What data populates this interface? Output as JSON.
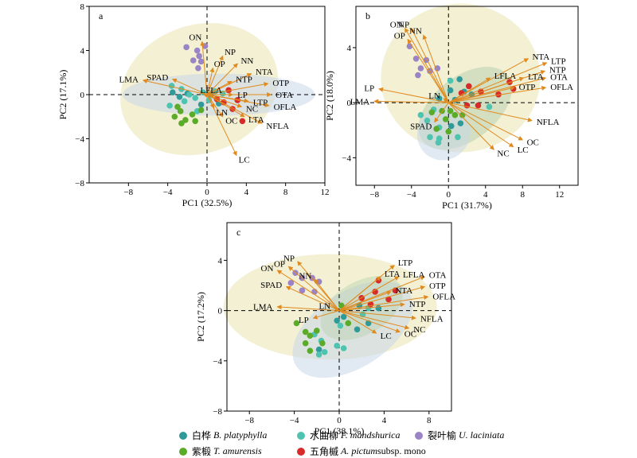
{
  "legend": [
    {
      "cn": "白桦",
      "latin": "B. platyphylla",
      "suffix": "",
      "color": "#2f9a9a"
    },
    {
      "cn": "水曲柳",
      "latin": "F. mandshurica",
      "suffix": "",
      "color": "#4ec3b0"
    },
    {
      "cn": "裂叶榆",
      "latin": "U. laciniata",
      "suffix": "",
      "color": "#9b84c6"
    },
    {
      "cn": "紫椴",
      "latin": "T. amurensis",
      "suffix": "",
      "color": "#5aab2a"
    },
    {
      "cn": "五角槭",
      "latin": "A. pictum",
      "suffix": " subsp. mono",
      "color": "#d92a2a"
    }
  ],
  "chart_data": [
    {
      "type": "scatter",
      "panel_label": "a",
      "xlabel": "PC1 (32.5%)",
      "ylabel": "PC2 (17.1%)",
      "xlim": [
        -12,
        12
      ],
      "ylim": [
        -8,
        8
      ],
      "xticks": [
        -8,
        -4,
        0,
        4,
        8,
        12
      ],
      "yticks": [
        -8,
        -4,
        0,
        4,
        8
      ],
      "vectors": [
        {
          "name": "ON",
          "x": -0.5,
          "y": 4.8
        },
        {
          "name": "NP",
          "x": 1.6,
          "y": 3.5
        },
        {
          "name": "OP",
          "x": 0.6,
          "y": 2.4
        },
        {
          "name": "NN",
          "x": 3.1,
          "y": 2.8
        },
        {
          "name": "NTA",
          "x": 4.5,
          "y": 1.9
        },
        {
          "name": "NTP",
          "x": 2.5,
          "y": 1.2
        },
        {
          "name": "OTP",
          "x": 6.2,
          "y": 1.0
        },
        {
          "name": "OTA",
          "x": 6.5,
          "y": 0.0
        },
        {
          "name": "LTP",
          "x": 4.2,
          "y": -0.6
        },
        {
          "name": "OFLA",
          "x": 6.3,
          "y": -1.0
        },
        {
          "name": "LTA",
          "x": 3.8,
          "y": -2.0
        },
        {
          "name": "NFLA",
          "x": 5.6,
          "y": -2.6
        },
        {
          "name": "NC",
          "x": 3.5,
          "y": -1.1
        },
        {
          "name": "OC",
          "x": 1.6,
          "y": -2.0
        },
        {
          "name": "LP",
          "x": 2.6,
          "y": 0.0
        },
        {
          "name": "LN",
          "x": 0.7,
          "y": -1.2
        },
        {
          "name": "LFLA",
          "x": 0.1,
          "y": 0.1
        },
        {
          "name": "LC",
          "x": 3.0,
          "y": -5.5
        },
        {
          "name": "SPAD",
          "x": -3.5,
          "y": 1.4
        },
        {
          "name": "LMA",
          "x": -6.5,
          "y": 1.3
        }
      ],
      "points": [
        {
          "g": 0,
          "x": -3.5,
          "y": 0.2
        },
        {
          "g": 0,
          "x": -2.8,
          "y": -0.2
        },
        {
          "g": 0,
          "x": -2.0,
          "y": 0.1
        },
        {
          "g": 0,
          "x": 0.4,
          "y": 0.0
        },
        {
          "g": 0,
          "x": -0.6,
          "y": -0.9
        },
        {
          "g": 0,
          "x": 1.2,
          "y": -0.8
        },
        {
          "g": 1,
          "x": -3.6,
          "y": 0.8
        },
        {
          "g": 1,
          "x": -2.6,
          "y": 0.5
        },
        {
          "g": 1,
          "x": -1.8,
          "y": 0.0
        },
        {
          "g": 1,
          "x": -1.2,
          "y": -0.3
        },
        {
          "g": 1,
          "x": -0.4,
          "y": 0.2
        },
        {
          "g": 1,
          "x": 0.8,
          "y": 0.3
        },
        {
          "g": 1,
          "x": -1.0,
          "y": -1.5
        },
        {
          "g": 1,
          "x": 1.6,
          "y": 0.1
        },
        {
          "g": 1,
          "x": -3.8,
          "y": -1.0
        },
        {
          "g": 1,
          "x": -2.3,
          "y": -0.6
        },
        {
          "g": 1,
          "x": 0.2,
          "y": -0.5
        },
        {
          "g": 2,
          "x": -2.1,
          "y": 4.3
        },
        {
          "g": 2,
          "x": -1.0,
          "y": 4.0
        },
        {
          "g": 2,
          "x": -0.8,
          "y": 3.5
        },
        {
          "g": 2,
          "x": -0.6,
          "y": 3.0
        },
        {
          "g": 2,
          "x": -0.2,
          "y": 4.4
        },
        {
          "g": 2,
          "x": -1.4,
          "y": 3.1
        },
        {
          "g": 2,
          "x": -0.9,
          "y": 2.4
        },
        {
          "g": 3,
          "x": -3.3,
          "y": -2.0
        },
        {
          "g": 3,
          "x": -2.7,
          "y": -1.5
        },
        {
          "g": 3,
          "x": -2.2,
          "y": -2.3
        },
        {
          "g": 3,
          "x": -1.5,
          "y": -1.8
        },
        {
          "g": 3,
          "x": -1.2,
          "y": -2.4
        },
        {
          "g": 3,
          "x": -2.6,
          "y": -2.6
        },
        {
          "g": 3,
          "x": -0.6,
          "y": -1.4
        },
        {
          "g": 3,
          "x": -3.0,
          "y": -1.1
        },
        {
          "g": 4,
          "x": 1.0,
          "y": -0.4
        },
        {
          "g": 4,
          "x": 1.7,
          "y": -0.7
        },
        {
          "g": 4,
          "x": 2.6,
          "y": -1.3
        },
        {
          "g": 4,
          "x": 3.1,
          "y": -0.5
        },
        {
          "g": 4,
          "x": 3.6,
          "y": -2.4
        },
        {
          "g": 4,
          "x": 2.2,
          "y": 0.4
        }
      ]
    },
    {
      "type": "scatter",
      "panel_label": "b",
      "xlabel": "PC1 (31.7%)",
      "ylabel": "PC2 (18.0%)",
      "xlim": [
        -10,
        14
      ],
      "ylim": [
        -6,
        7
      ],
      "xticks": [
        -8,
        -4,
        0,
        4,
        8,
        12
      ],
      "yticks": [
        -4,
        0,
        4
      ],
      "vectors": [
        {
          "name": "ON",
          "x": -4.7,
          "y": 5.4
        },
        {
          "name": "NP",
          "x": -4.0,
          "y": 5.4
        },
        {
          "name": "OP",
          "x": -4.4,
          "y": 4.6
        },
        {
          "name": "NN",
          "x": -2.7,
          "y": 4.9
        },
        {
          "name": "NTA",
          "x": 8.6,
          "y": 3.2
        },
        {
          "name": "LTP",
          "x": 10.6,
          "y": 2.9
        },
        {
          "name": "NTP",
          "x": 10.4,
          "y": 2.3
        },
        {
          "name": "LTA",
          "x": 8.1,
          "y": 1.8
        },
        {
          "name": "OTA",
          "x": 10.5,
          "y": 1.8
        },
        {
          "name": "LFLA",
          "x": 4.5,
          "y": 1.8
        },
        {
          "name": "OTP",
          "x": 7.1,
          "y": 1.1
        },
        {
          "name": "OFLA",
          "x": 10.5,
          "y": 1.1
        },
        {
          "name": "LP",
          "x": -7.5,
          "y": 1.0
        },
        {
          "name": "LMA",
          "x": -8.0,
          "y": 0.1
        },
        {
          "name": "LN",
          "x": -0.5,
          "y": 0.3
        },
        {
          "name": "NFLA",
          "x": 9.0,
          "y": -1.3
        },
        {
          "name": "SPAD",
          "x": -1.5,
          "y": -1.4
        },
        {
          "name": "OC",
          "x": 8.0,
          "y": -2.7
        },
        {
          "name": "LC",
          "x": 7.0,
          "y": -3.2
        },
        {
          "name": "NC",
          "x": 4.9,
          "y": -3.4
        }
      ],
      "points": [
        {
          "g": 0,
          "x": -1.0,
          "y": 0.3
        },
        {
          "g": 0,
          "x": 0.2,
          "y": 0.9
        },
        {
          "g": 0,
          "x": 1.2,
          "y": 1.7
        },
        {
          "g": 0,
          "x": 1.7,
          "y": 0.8
        },
        {
          "g": 0,
          "x": 2.5,
          "y": 0.6
        },
        {
          "g": 0,
          "x": 0.3,
          "y": -1.7
        },
        {
          "g": 0,
          "x": 1.3,
          "y": -1.5
        },
        {
          "g": 0,
          "x": 0.7,
          "y": 0.2
        },
        {
          "g": 1,
          "x": -3.0,
          "y": -0.9
        },
        {
          "g": 1,
          "x": -2.3,
          "y": -1.3
        },
        {
          "g": 1,
          "x": -1.6,
          "y": -0.5
        },
        {
          "g": 1,
          "x": -1.0,
          "y": -1.8
        },
        {
          "g": 1,
          "x": -2.0,
          "y": -2.5
        },
        {
          "g": 1,
          "x": -1.0,
          "y": -2.6
        },
        {
          "g": 1,
          "x": 1.0,
          "y": -2.5
        },
        {
          "g": 1,
          "x": -1.1,
          "y": -2.9
        },
        {
          "g": 1,
          "x": 4.4,
          "y": -0.3
        },
        {
          "g": 1,
          "x": 0.2,
          "y": 1.6
        },
        {
          "g": 2,
          "x": -4.2,
          "y": 4.1
        },
        {
          "g": 2,
          "x": -3.5,
          "y": 3.2
        },
        {
          "g": 2,
          "x": -2.4,
          "y": 3.1
        },
        {
          "g": 2,
          "x": -3.0,
          "y": 2.5
        },
        {
          "g": 2,
          "x": -2.0,
          "y": 2.3
        },
        {
          "g": 2,
          "x": -3.3,
          "y": 2.0
        },
        {
          "g": 2,
          "x": -1.2,
          "y": 2.5
        },
        {
          "g": 3,
          "x": -0.7,
          "y": -0.6
        },
        {
          "g": 3,
          "x": -0.3,
          "y": -1.2
        },
        {
          "g": 3,
          "x": 0.7,
          "y": -0.9
        },
        {
          "g": 3,
          "x": 1.5,
          "y": -0.9
        },
        {
          "g": 3,
          "x": 0.2,
          "y": -0.6
        },
        {
          "g": 3,
          "x": -1.8,
          "y": -0.7
        },
        {
          "g": 3,
          "x": -1.3,
          "y": -1.9
        },
        {
          "g": 3,
          "x": 0.0,
          "y": -2.1
        },
        {
          "g": 4,
          "x": 1.4,
          "y": 0.7
        },
        {
          "g": 4,
          "x": 2.2,
          "y": 1.2
        },
        {
          "g": 4,
          "x": 3.5,
          "y": 0.8
        },
        {
          "g": 4,
          "x": 3.2,
          "y": -0.2
        },
        {
          "g": 4,
          "x": 5.4,
          "y": 0.6
        },
        {
          "g": 4,
          "x": 6.6,
          "y": 1.5
        },
        {
          "g": 4,
          "x": 7.0,
          "y": 1.0
        },
        {
          "g": 4,
          "x": 2.0,
          "y": -0.2
        }
      ]
    },
    {
      "type": "scatter",
      "panel_label": "c",
      "xlabel": "PC1 (38.1%)",
      "ylabel": "PC2 (17.2%)",
      "xlim": [
        -10,
        10
      ],
      "ylim": [
        -8,
        7
      ],
      "xticks": [
        -8,
        -4,
        0,
        4,
        8
      ],
      "yticks": [
        -8,
        -4,
        0,
        4
      ],
      "vectors": [
        {
          "name": "NP",
          "x": -3.7,
          "y": 3.9
        },
        {
          "name": "OP",
          "x": -4.5,
          "y": 3.5
        },
        {
          "name": "ON",
          "x": -5.5,
          "y": 3.2
        },
        {
          "name": "SPAD",
          "x": -4.7,
          "y": 1.9
        },
        {
          "name": "NN",
          "x": -2.2,
          "y": 2.5
        },
        {
          "name": "LMA",
          "x": -5.5,
          "y": 0.3
        },
        {
          "name": "LP",
          "x": -2.3,
          "y": -0.6
        },
        {
          "name": "LN",
          "x": -0.4,
          "y": 0.2
        },
        {
          "name": "LTP",
          "x": 4.9,
          "y": 3.6
        },
        {
          "name": "LTA",
          "x": 3.7,
          "y": 2.7
        },
        {
          "name": "LFLA",
          "x": 5.3,
          "y": 2.7
        },
        {
          "name": "OTA",
          "x": 7.6,
          "y": 2.7
        },
        {
          "name": "OTP",
          "x": 7.6,
          "y": 1.9
        },
        {
          "name": "NTA",
          "x": 4.6,
          "y": 1.5
        },
        {
          "name": "OFLA",
          "x": 7.9,
          "y": 1.1
        },
        {
          "name": "NTP",
          "x": 5.8,
          "y": 0.5
        },
        {
          "name": "NFLA",
          "x": 6.8,
          "y": -0.6
        },
        {
          "name": "NC",
          "x": 6.2,
          "y": -1.4
        },
        {
          "name": "OC",
          "x": 5.4,
          "y": -1.7
        },
        {
          "name": "LC",
          "x": 3.3,
          "y": -1.8
        }
      ],
      "points": [
        {
          "g": 0,
          "x": -0.2,
          "y": -0.8
        },
        {
          "g": 0,
          "x": 0.4,
          "y": -0.5
        },
        {
          "g": 0,
          "x": 1.8,
          "y": 0.4
        },
        {
          "g": 0,
          "x": 2.6,
          "y": -1.0
        },
        {
          "g": 0,
          "x": 1.6,
          "y": -1.5
        },
        {
          "g": 0,
          "x": -1.8,
          "y": -3.1
        },
        {
          "g": 0,
          "x": 3.5,
          "y": 0.2
        },
        {
          "g": 1,
          "x": -2.2,
          "y": -1.9
        },
        {
          "g": 1,
          "x": -1.6,
          "y": -2.4
        },
        {
          "g": 1,
          "x": -1.8,
          "y": -3.5
        },
        {
          "g": 1,
          "x": -1.3,
          "y": -3.3
        },
        {
          "g": 1,
          "x": 0.1,
          "y": -1.2
        },
        {
          "g": 1,
          "x": -0.2,
          "y": -2.8
        },
        {
          "g": 1,
          "x": 0.4,
          "y": -3.0
        },
        {
          "g": 1,
          "x": 2.1,
          "y": -0.3
        },
        {
          "g": 1,
          "x": 2.6,
          "y": 0.2
        },
        {
          "g": 2,
          "x": -3.9,
          "y": 3.0
        },
        {
          "g": 2,
          "x": -3.3,
          "y": 2.6
        },
        {
          "g": 2,
          "x": -2.4,
          "y": 2.6
        },
        {
          "g": 2,
          "x": -1.8,
          "y": 2.3
        },
        {
          "g": 2,
          "x": -4.3,
          "y": 2.2
        },
        {
          "g": 2,
          "x": -3.3,
          "y": 1.6
        },
        {
          "g": 2,
          "x": -2.2,
          "y": 1.5
        },
        {
          "g": 3,
          "x": -3.8,
          "y": -1.0
        },
        {
          "g": 3,
          "x": -3.0,
          "y": -1.7
        },
        {
          "g": 3,
          "x": -2.6,
          "y": -2.0
        },
        {
          "g": 3,
          "x": -2.0,
          "y": -1.6
        },
        {
          "g": 3,
          "x": -3.0,
          "y": -2.6
        },
        {
          "g": 3,
          "x": -2.6,
          "y": -3.2
        },
        {
          "g": 3,
          "x": -1.5,
          "y": -2.6
        },
        {
          "g": 3,
          "x": 0.8,
          "y": -1.0
        },
        {
          "g": 3,
          "x": 0.2,
          "y": 0.4
        },
        {
          "g": 4,
          "x": 2.0,
          "y": 1.0
        },
        {
          "g": 4,
          "x": 3.2,
          "y": 1.5
        },
        {
          "g": 4,
          "x": 3.5,
          "y": 2.4
        },
        {
          "g": 4,
          "x": 5.0,
          "y": 1.6
        },
        {
          "g": 4,
          "x": 4.4,
          "y": 0.9
        },
        {
          "g": 4,
          "x": 2.8,
          "y": 0.5
        }
      ]
    }
  ]
}
